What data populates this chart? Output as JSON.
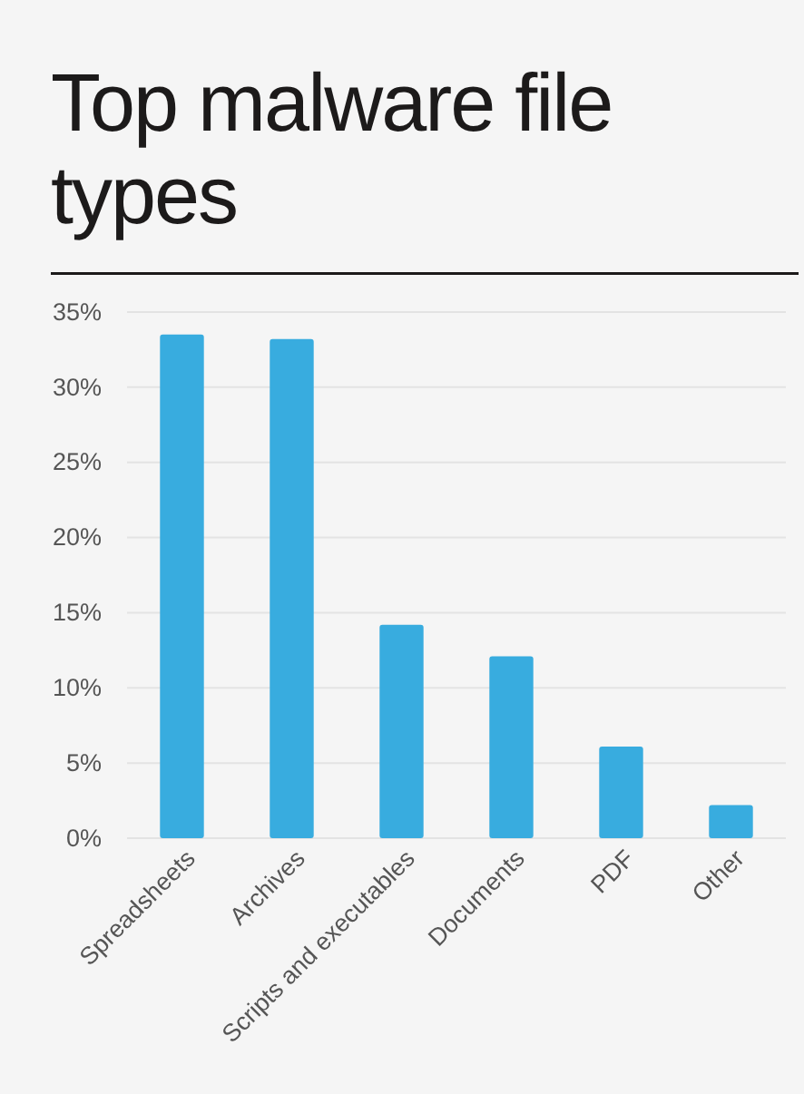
{
  "chart_data": {
    "type": "bar",
    "title": "Top malware file types",
    "categories": [
      "Spreadsheets",
      "Archives",
      "Scripts and executables",
      "Documents",
      "PDF",
      "Other"
    ],
    "values": [
      33.5,
      33.2,
      14.2,
      12.1,
      6.1,
      2.2
    ],
    "color": "#38acdf",
    "ylim": [
      0,
      35
    ],
    "yticks": [
      {
        "value": 0,
        "label": "0%"
      },
      {
        "value": 5,
        "label": "5%"
      },
      {
        "value": 10,
        "label": "10%"
      },
      {
        "value": 15,
        "label": "15%"
      },
      {
        "value": 20,
        "label": "20%"
      },
      {
        "value": 25,
        "label": "25%"
      },
      {
        "value": 30,
        "label": "30%"
      },
      {
        "value": 35,
        "label": "35%"
      }
    ],
    "grid": "y"
  }
}
